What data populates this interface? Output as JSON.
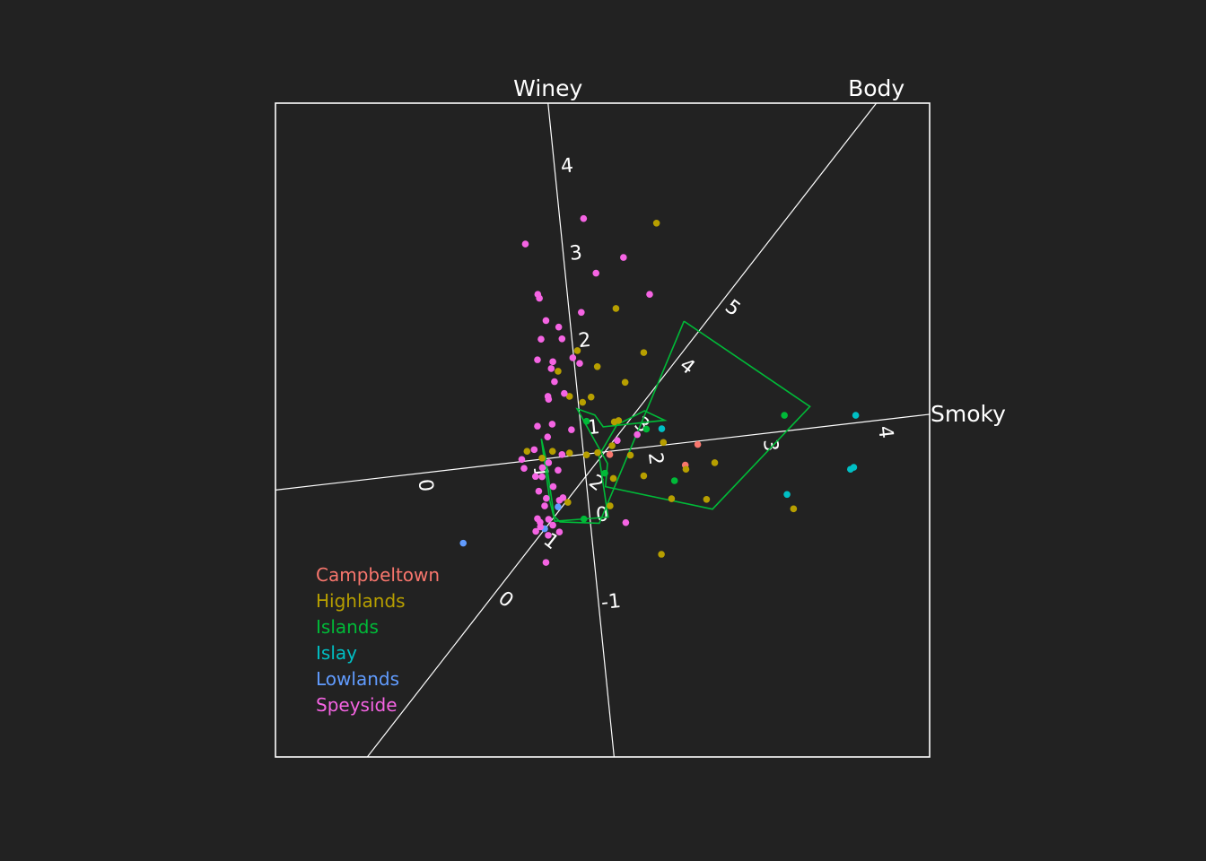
{
  "chart_data": {
    "type": "scatter",
    "title": "",
    "panel": {
      "x_range": [
        -1,
        1
      ],
      "y_range": [
        -1,
        1
      ],
      "frame": true,
      "grid": false
    },
    "axes": [
      {
        "name": "Winey",
        "direction": [
          -0.101,
          1.0
        ],
        "origin": [
          -0.039,
          -0.264
        ],
        "tick_labels": [
          "-1",
          "0",
          "1",
          "2",
          "3",
          "4"
        ],
        "tick_values": [
          -1,
          0,
          1,
          2,
          3,
          4
        ],
        "tick_spacing": 0.268
      },
      {
        "name": "Body",
        "direction": [
          0.614,
          0.789
        ],
        "origin": [
          -0.327,
          -0.496
        ],
        "tick_labels": [
          "0",
          "1",
          "2",
          "3",
          "4",
          "5"
        ],
        "tick_values": [
          0,
          1,
          2,
          3,
          4,
          5
        ],
        "tick_spacing": 0.226
      },
      {
        "name": "Smoky",
        "direction": [
          0.993,
          0.115
        ],
        "origin": [
          -0.547,
          -0.131
        ],
        "tick_labels": [
          "0",
          "1",
          "2",
          "3",
          "4"
        ],
        "tick_values": [
          0,
          1,
          2,
          3,
          4
        ],
        "tick_spacing": 0.354
      }
    ],
    "legend": {
      "position": "bottom-left",
      "entries": [
        "Campbeltown",
        "Highlands",
        "Islands",
        "Islay",
        "Lowlands",
        "Speyside"
      ]
    },
    "colors": {
      "Campbeltown": "#f8766d",
      "Highlands": "#b79f00",
      "Islands": "#00ba38",
      "Islay": "#00bfc4",
      "Lowlands": "#619cff",
      "Speyside": "#f564e3",
      "axis": "#ffffff",
      "background": "#222222"
    },
    "series": [
      {
        "name": "Campbeltown",
        "points": [
          [
            0.291,
            -0.044
          ],
          [
            0.253,
            -0.107
          ],
          [
            0.022,
            -0.075
          ]
        ]
      },
      {
        "name": "Highlands",
        "points": [
          [
            0.165,
            0.633
          ],
          [
            0.041,
            0.372
          ],
          [
            0.126,
            0.237
          ],
          [
            0.069,
            0.146
          ],
          [
            -0.077,
            0.243
          ],
          [
            -0.016,
            0.194
          ],
          [
            -0.035,
            0.101
          ],
          [
            -0.136,
            0.18
          ],
          [
            -0.061,
            0.085
          ],
          [
            -0.101,
            0.103
          ],
          [
            0.049,
            0.029
          ],
          [
            0.085,
            -0.077
          ],
          [
            0.186,
            -0.038
          ],
          [
            0.255,
            -0.12
          ],
          [
            0.343,
            -0.1
          ],
          [
            -0.101,
            -0.07
          ],
          [
            -0.185,
            -0.086
          ],
          [
            -0.106,
            -0.221
          ],
          [
            -0.015,
            -0.069
          ],
          [
            0.126,
            -0.14
          ],
          [
            0.211,
            -0.21
          ],
          [
            0.023,
            -0.232
          ],
          [
            0.18,
            -0.38
          ],
          [
            0.318,
            -0.212
          ],
          [
            0.033,
            -0.148
          ],
          [
            0.029,
            -0.048
          ],
          [
            -0.049,
            -0.076
          ],
          [
            0.036,
            0.025
          ],
          [
            0.584,
            -0.241
          ],
          [
            -0.231,
            -0.065
          ],
          [
            -0.153,
            -0.065
          ]
        ]
      },
      {
        "name": "Islands",
        "points": [
          [
            -0.049,
            0.027
          ],
          [
            0.22,
            -0.155
          ],
          [
            0.134,
            0.003
          ],
          [
            -0.057,
            -0.272
          ],
          [
            0.007,
            -0.132
          ],
          [
            0.556,
            0.045
          ]
        ]
      },
      {
        "name": "Islay",
        "points": [
          [
            0.774,
            0.045
          ],
          [
            0.758,
            -0.12
          ],
          [
            0.768,
            -0.114
          ],
          [
            0.564,
            -0.197
          ],
          [
            0.181,
            0.004
          ]
        ]
      },
      {
        "name": "Lowlands",
        "points": [
          [
            -0.426,
            -0.346
          ],
          [
            -0.177,
            -0.302
          ],
          [
            -0.136,
            -0.235
          ]
        ]
      },
      {
        "name": "Speyside",
        "points": [
          [
            -0.058,
            0.647
          ],
          [
            -0.236,
            0.569
          ],
          [
            0.064,
            0.528
          ],
          [
            -0.02,
            0.48
          ],
          [
            0.144,
            0.415
          ],
          [
            -0.193,
            0.403
          ],
          [
            -0.198,
            0.415
          ],
          [
            -0.173,
            0.335
          ],
          [
            -0.065,
            0.36
          ],
          [
            -0.134,
            0.315
          ],
          [
            -0.188,
            0.278
          ],
          [
            -0.124,
            0.279
          ],
          [
            -0.199,
            0.215
          ],
          [
            -0.152,
            0.209
          ],
          [
            -0.091,
            0.221
          ],
          [
            -0.07,
            0.204
          ],
          [
            -0.157,
            0.188
          ],
          [
            -0.147,
            0.148
          ],
          [
            -0.167,
            0.103
          ],
          [
            -0.165,
            0.094
          ],
          [
            -0.117,
            0.112
          ],
          [
            -0.199,
            0.012
          ],
          [
            -0.154,
            0.018
          ],
          [
            -0.095,
            0.001
          ],
          [
            -0.168,
            -0.021
          ],
          [
            -0.209,
            -0.06
          ],
          [
            -0.247,
            -0.09
          ],
          [
            -0.205,
            -0.142
          ],
          [
            -0.24,
            -0.117
          ],
          [
            -0.184,
            -0.115
          ],
          [
            -0.151,
            -0.173
          ],
          [
            -0.121,
            -0.207
          ],
          [
            -0.136,
            -0.123
          ],
          [
            -0.132,
            -0.215
          ],
          [
            -0.165,
            -0.273
          ],
          [
            -0.191,
            -0.282
          ],
          [
            -0.177,
            -0.232
          ],
          [
            -0.172,
            -0.209
          ],
          [
            -0.152,
            -0.291
          ],
          [
            -0.132,
            -0.312
          ],
          [
            -0.204,
            -0.31
          ],
          [
            -0.19,
            -0.296
          ],
          [
            -0.199,
            -0.271
          ],
          [
            -0.166,
            -0.322
          ],
          [
            0.106,
            -0.014
          ],
          [
            0.045,
            -0.032
          ],
          [
            -0.124,
            -0.075
          ],
          [
            -0.173,
            -0.405
          ],
          [
            0.071,
            -0.283
          ],
          [
            -0.165,
            -0.1
          ],
          [
            -0.185,
            -0.143
          ],
          [
            -0.195,
            -0.187
          ]
        ]
      }
    ],
    "outlines": [
      {
        "name": "Islands",
        "points": [
          [
            0.249,
            0.333
          ],
          [
            0.634,
            0.072
          ],
          [
            0.336,
            -0.242
          ],
          [
            0.009,
            -0.173
          ],
          [
            0.015,
            -0.102
          ],
          [
            -0.078,
            0.065
          ],
          [
            -0.024,
            0.046
          ],
          [
            0.002,
            0.01
          ],
          [
            0.19,
            0.03
          ],
          [
            0.128,
            0.059
          ],
          [
            0.044,
            0.016
          ],
          [
            -0.011,
            -0.078
          ],
          [
            0.017,
            -0.266
          ],
          [
            -0.146,
            -0.279
          ],
          [
            -0.161,
            -0.217
          ],
          [
            -0.187,
            -0.027
          ],
          [
            -0.175,
            -0.08
          ],
          [
            -0.148,
            -0.264
          ],
          [
            -0.13,
            -0.281
          ],
          [
            -0.01,
            -0.285
          ],
          [
            0.249,
            0.333
          ]
        ]
      }
    ]
  }
}
